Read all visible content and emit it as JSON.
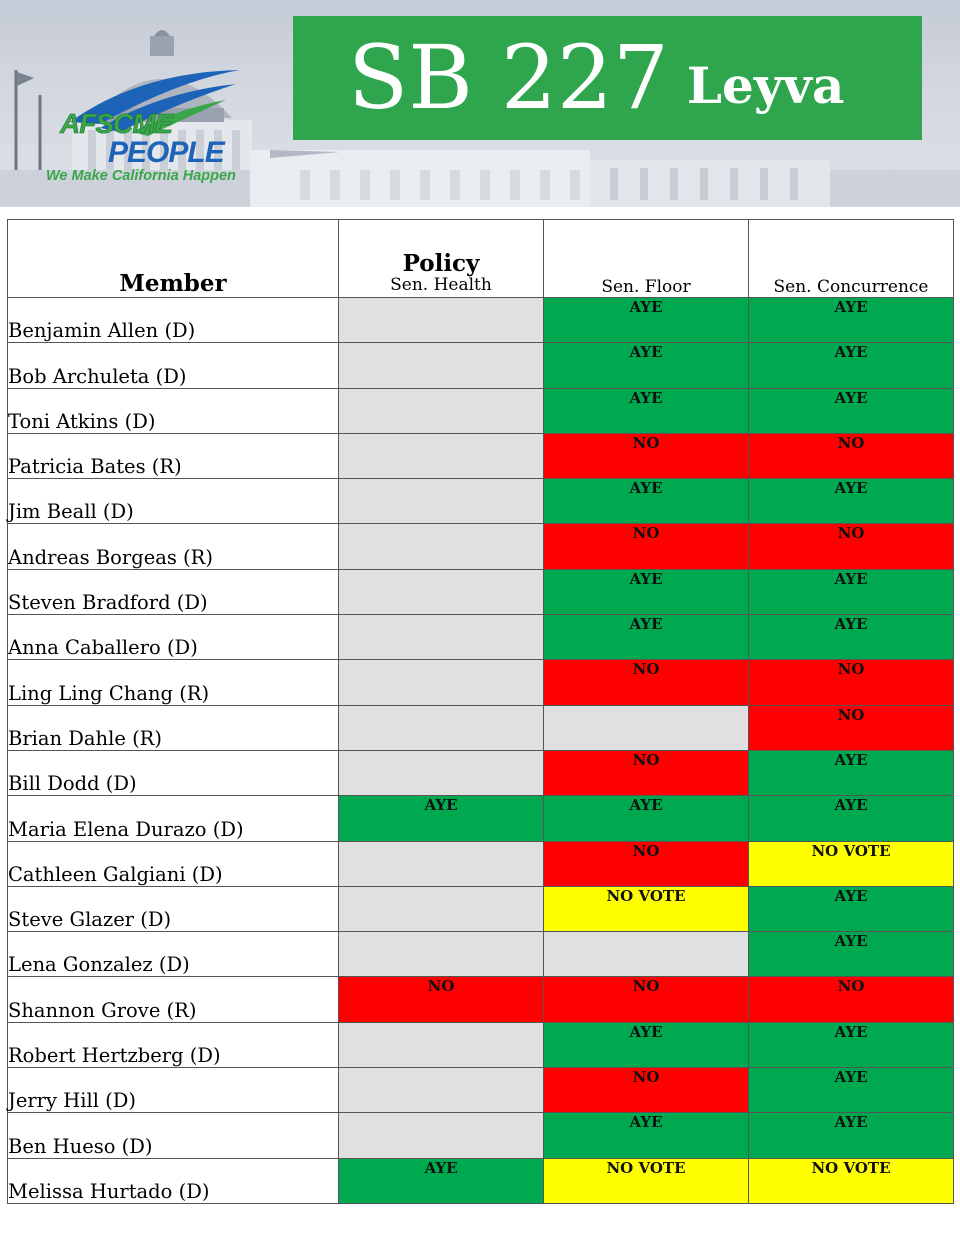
{
  "banner": {
    "bill_number": "SB 227",
    "author": "Leyva",
    "logo": {
      "line1": "AFSCME",
      "line2": "PEOPLE",
      "tagline": "We Make California Happen"
    }
  },
  "colors": {
    "aye": "#00a84f",
    "no": "#ff0000",
    "no_vote": "#ffff00",
    "blank": "#e0e0e0",
    "title_box": "#2fa64e"
  },
  "table": {
    "headers": {
      "member": "Member",
      "policy_group": "Policy",
      "policy_committee": "Sen. Health",
      "floor": "Sen. Floor",
      "concurrence": "Sen. Concurrence"
    },
    "rows": [
      {
        "member": "Benjamin Allen (D)",
        "policy": "",
        "floor": "AYE",
        "concurrence": "AYE"
      },
      {
        "member": "Bob Archuleta (D)",
        "policy": "",
        "floor": "AYE",
        "concurrence": "AYE"
      },
      {
        "member": "Toni Atkins (D)",
        "policy": "",
        "floor": "AYE",
        "concurrence": "AYE"
      },
      {
        "member": "Patricia Bates (R)",
        "policy": "",
        "floor": "NO",
        "concurrence": "NO"
      },
      {
        "member": "Jim Beall (D)",
        "policy": "",
        "floor": "AYE",
        "concurrence": "AYE"
      },
      {
        "member": "Andreas Borgeas (R)",
        "policy": "",
        "floor": "NO",
        "concurrence": "NO"
      },
      {
        "member": "Steven Bradford (D)",
        "policy": "",
        "floor": "AYE",
        "concurrence": "AYE"
      },
      {
        "member": "Anna Caballero (D)",
        "policy": "",
        "floor": "AYE",
        "concurrence": "AYE"
      },
      {
        "member": "Ling Ling Chang (R)",
        "policy": "",
        "floor": "NO",
        "concurrence": "NO"
      },
      {
        "member": "Brian Dahle (R)",
        "policy": "",
        "floor": "",
        "concurrence": "NO"
      },
      {
        "member": "Bill Dodd (D)",
        "policy": "",
        "floor": "NO",
        "concurrence": "AYE"
      },
      {
        "member": "Maria Elena Durazo (D)",
        "policy": "AYE",
        "floor": "AYE",
        "concurrence": "AYE"
      },
      {
        "member": "Cathleen Galgiani (D)",
        "policy": "",
        "floor": "NO",
        "concurrence": "NO VOTE"
      },
      {
        "member": "Steve Glazer (D)",
        "policy": "",
        "floor": "NO VOTE",
        "concurrence": "AYE"
      },
      {
        "member": "Lena Gonzalez (D)",
        "policy": "",
        "floor": "",
        "concurrence": "AYE"
      },
      {
        "member": "Shannon Grove (R)",
        "policy": "NO",
        "floor": "NO",
        "concurrence": "NO"
      },
      {
        "member": "Robert Hertzberg (D)",
        "policy": "",
        "floor": "AYE",
        "concurrence": "AYE"
      },
      {
        "member": "Jerry Hill (D)",
        "policy": "",
        "floor": "NO",
        "concurrence": "AYE"
      },
      {
        "member": "Ben Hueso (D)",
        "policy": "",
        "floor": "AYE",
        "concurrence": "AYE"
      },
      {
        "member": "Melissa Hurtado (D)",
        "policy": "AYE",
        "floor": "NO VOTE",
        "concurrence": "NO VOTE"
      }
    ]
  }
}
